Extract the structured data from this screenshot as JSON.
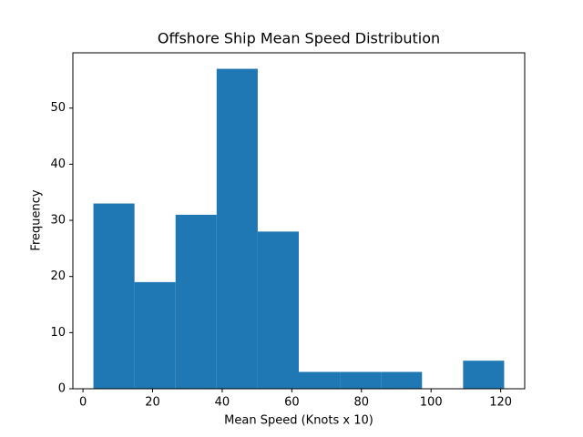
{
  "chart_data": {
    "type": "histogram",
    "title": "Offshore Ship Mean Speed Distribution",
    "x_label": "Mean Speed (Knots x 10)",
    "y_label": "Frequency",
    "bins": [
      3,
      14.8,
      26.6,
      38.4,
      50.2,
      62,
      73.8,
      85.6,
      97.4,
      109.2,
      121
    ],
    "values": [
      33,
      19,
      31,
      57,
      28,
      3,
      3,
      3,
      0,
      5
    ],
    "color": "#1f77b4",
    "xlim": [
      -2.9,
      126.9
    ],
    "xticks": [
      0,
      20,
      40,
      60,
      80,
      100,
      120
    ],
    "ylim": [
      0,
      59.85
    ],
    "yticks": [
      0,
      10,
      20,
      30,
      40,
      50
    ]
  }
}
